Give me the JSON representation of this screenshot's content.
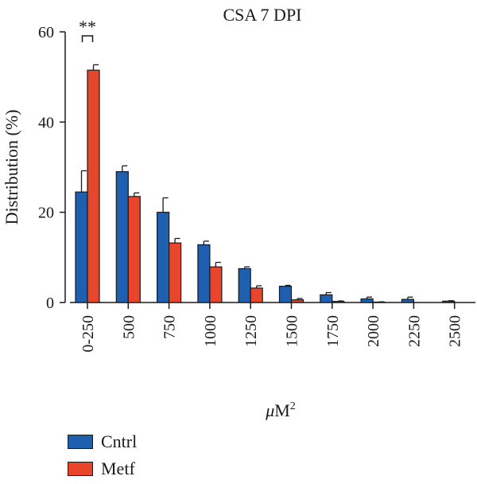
{
  "chart_data": {
    "type": "bar",
    "title": "CSA 7 DPI",
    "xlabel": "μM²",
    "xlabel_base": "μM",
    "xlabel_sup": "2",
    "ylabel": "Distribution (%)",
    "ylim": [
      0,
      60
    ],
    "yticks": [
      "0",
      "20",
      "40",
      "60"
    ],
    "categories": [
      "0-250",
      "500",
      "750",
      "1000",
      "1250",
      "1500",
      "1750",
      "2000",
      "2250",
      "2500"
    ],
    "series": [
      {
        "name": "Cntrl",
        "color": "#1f5fb0",
        "values": [
          24.5,
          29.0,
          20.0,
          12.8,
          7.5,
          3.6,
          1.7,
          0.8,
          0.7,
          0.3
        ],
        "errors": [
          4.7,
          1.3,
          3.2,
          0.8,
          0.4,
          0.2,
          0.5,
          0.4,
          0.5,
          0.1
        ]
      },
      {
        "name": "Metf",
        "color": "#e8462c",
        "values": [
          51.5,
          23.5,
          13.2,
          7.9,
          3.2,
          0.6,
          0.25,
          0.1,
          0.0,
          0.0
        ],
        "errors": [
          1.2,
          0.8,
          1.0,
          1.0,
          0.5,
          0.3,
          0.1,
          0.05,
          0.0,
          0.0
        ]
      }
    ],
    "annotation": {
      "text": "**",
      "category": "0-250"
    },
    "grid": false,
    "legend_position": "bottom-left"
  }
}
